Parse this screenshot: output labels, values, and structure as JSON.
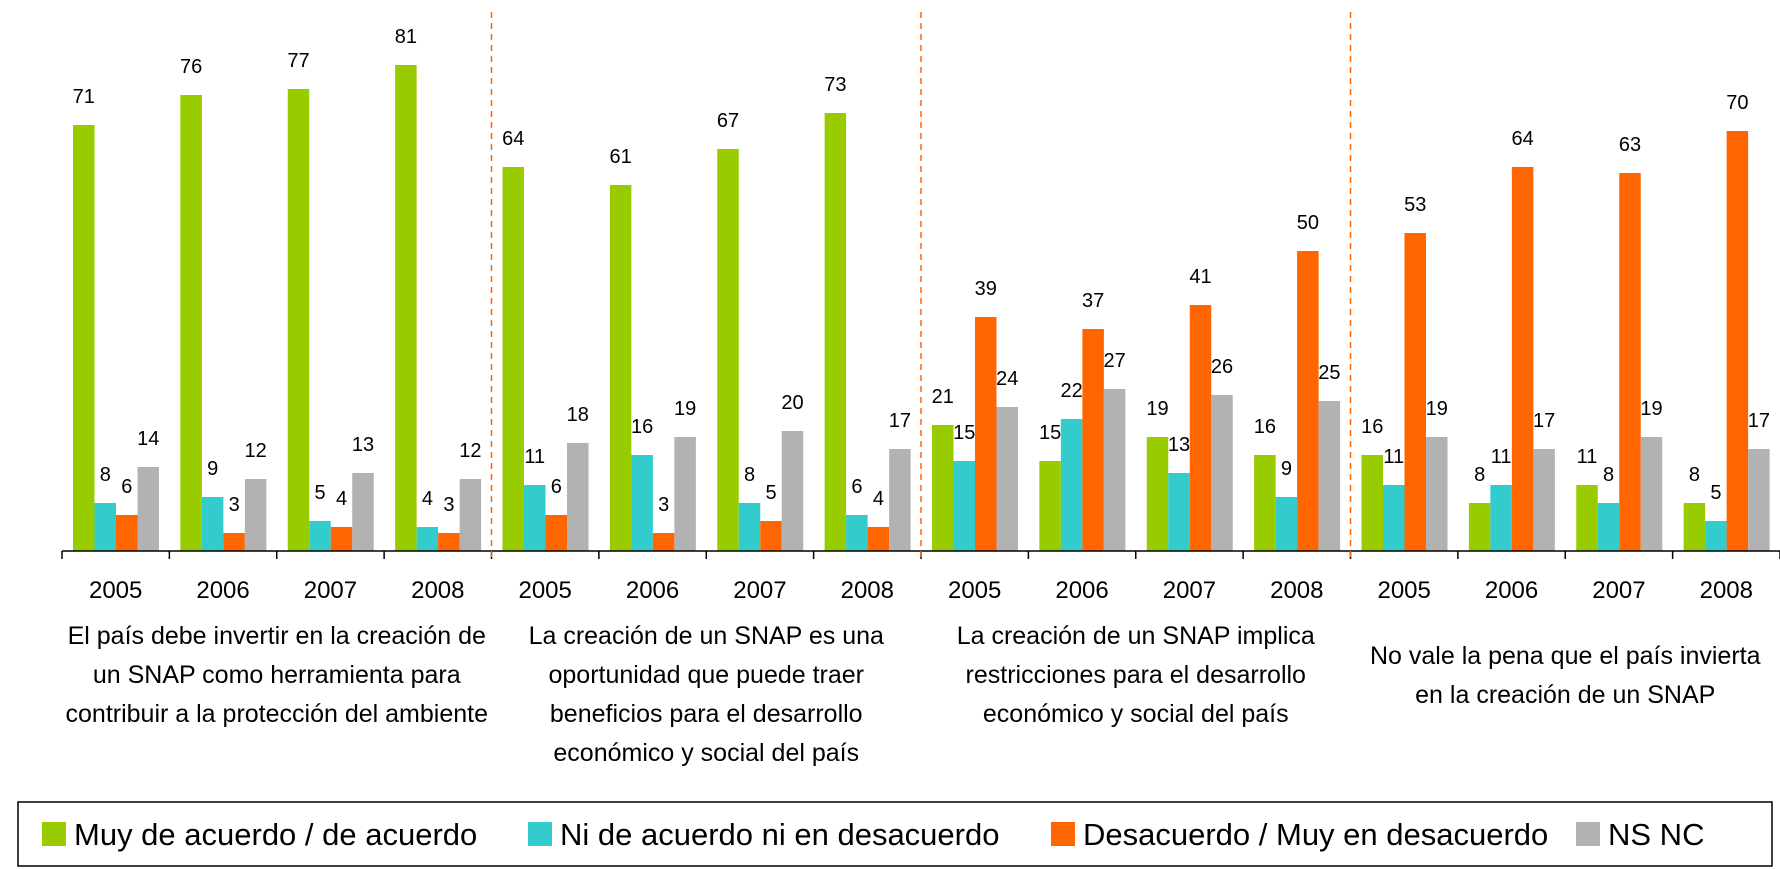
{
  "chart_data": {
    "type": "bar",
    "categories": [
      "2005",
      "2006",
      "2007",
      "2008",
      "2005",
      "2006",
      "2007",
      "2008",
      "2005",
      "2006",
      "2007",
      "2008",
      "2005",
      "2006",
      "2007",
      "2008"
    ],
    "groups": [
      [
        "El país debe invertir en la creación de",
        "un SNAP como herramienta para",
        "contribuir a la protección del ambiente"
      ],
      [
        "La creación de un SNAP es una",
        "oportunidad que puede traer",
        "beneficios para el desarrollo",
        "económico y social del país"
      ],
      [
        "La creación de un SNAP implica",
        "restricciones para el desarrollo",
        "económico y social del país"
      ],
      [
        "No vale la pena que el país invierta",
        "en la creación de un SNAP"
      ]
    ],
    "series": [
      {
        "name": "Muy de acuerdo / de acuerdo",
        "color": "#99cc00",
        "values": [
          71,
          76,
          77,
          81,
          64,
          61,
          67,
          73,
          21,
          15,
          19,
          16,
          16,
          8,
          11,
          8
        ]
      },
      {
        "name": "Ni de acuerdo ni en desacuerdo",
        "color": "#33cccc",
        "values": [
          8,
          9,
          5,
          4,
          11,
          16,
          8,
          6,
          15,
          22,
          13,
          9,
          11,
          11,
          8,
          5
        ]
      },
      {
        "name": "Desacuerdo / Muy en desacuerdo",
        "color": "#ff6600",
        "values": [
          6,
          3,
          4,
          3,
          6,
          3,
          5,
          4,
          39,
          37,
          41,
          50,
          53,
          64,
          63,
          70
        ]
      },
      {
        "name": "NS NC",
        "color": "#b2b2b2",
        "values": [
          14,
          12,
          13,
          12,
          18,
          19,
          20,
          17,
          24,
          27,
          26,
          25,
          19,
          17,
          19,
          17
        ]
      }
    ]
  }
}
